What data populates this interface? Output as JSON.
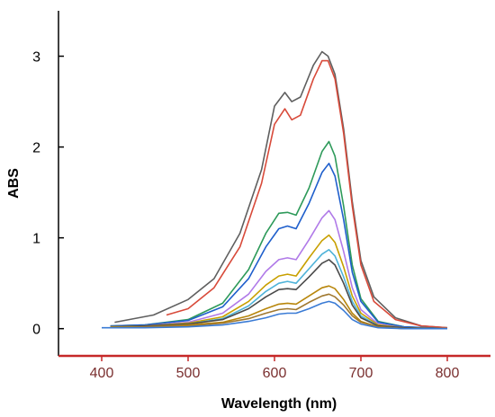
{
  "chart_data": {
    "type": "line",
    "title": "",
    "xlabel": "Wavelength (nm)",
    "ylabel": "ABS",
    "xlim": [
      350,
      850
    ],
    "ylim": [
      -0.3,
      3.5
    ],
    "xticks": [
      400,
      500,
      600,
      700,
      800
    ],
    "yticks": [
      0,
      1,
      2,
      3
    ],
    "grid": false,
    "legend": "none",
    "axis_colors": {
      "left": "#000000",
      "bottom": "#c62828",
      "x_tick_labels": "#7a2f2f"
    },
    "series": [
      {
        "color": "#5f5f5f",
        "x": [
          415,
          460,
          500,
          530,
          560,
          585,
          600,
          612,
          620,
          630,
          645,
          655,
          662,
          670,
          680,
          690,
          700,
          715,
          740,
          770,
          800
        ],
        "y": [
          0.07,
          0.15,
          0.32,
          0.55,
          1.05,
          1.75,
          2.45,
          2.6,
          2.5,
          2.55,
          2.9,
          3.05,
          3.0,
          2.8,
          2.2,
          1.4,
          0.75,
          0.35,
          0.12,
          0.03,
          0.01
        ]
      },
      {
        "color": "#d84a3a",
        "x": [
          475,
          500,
          530,
          560,
          585,
          600,
          612,
          620,
          630,
          645,
          655,
          662,
          670,
          680,
          690,
          700,
          715,
          740,
          770,
          800
        ],
        "y": [
          0.15,
          0.22,
          0.45,
          0.9,
          1.6,
          2.25,
          2.42,
          2.3,
          2.35,
          2.75,
          2.95,
          2.95,
          2.75,
          2.15,
          1.35,
          0.7,
          0.3,
          0.1,
          0.03,
          0.01
        ]
      },
      {
        "color": "#2e9a5a",
        "x": [
          410,
          450,
          500,
          540,
          570,
          590,
          605,
          615,
          625,
          640,
          655,
          663,
          670,
          680,
          690,
          700,
          720,
          750,
          800
        ],
        "y": [
          0.03,
          0.04,
          0.1,
          0.28,
          0.65,
          1.05,
          1.27,
          1.28,
          1.25,
          1.55,
          1.95,
          2.06,
          1.9,
          1.35,
          0.7,
          0.33,
          0.08,
          0.02,
          0.0
        ]
      },
      {
        "color": "#1f5fcc",
        "x": [
          410,
          450,
          500,
          540,
          570,
          590,
          605,
          615,
          625,
          640,
          655,
          663,
          670,
          680,
          690,
          700,
          720,
          750,
          800
        ],
        "y": [
          0.03,
          0.04,
          0.09,
          0.24,
          0.55,
          0.9,
          1.1,
          1.13,
          1.1,
          1.38,
          1.72,
          1.82,
          1.68,
          1.2,
          0.62,
          0.3,
          0.07,
          0.02,
          0.0
        ]
      },
      {
        "color": "#b07ae8",
        "x": [
          410,
          450,
          500,
          540,
          570,
          590,
          605,
          615,
          625,
          640,
          655,
          663,
          670,
          680,
          690,
          700,
          720,
          750,
          800
        ],
        "y": [
          0.02,
          0.03,
          0.07,
          0.17,
          0.38,
          0.63,
          0.76,
          0.78,
          0.76,
          0.98,
          1.22,
          1.3,
          1.2,
          0.85,
          0.45,
          0.21,
          0.05,
          0.01,
          0.0
        ]
      },
      {
        "color": "#c8a000",
        "x": [
          410,
          450,
          500,
          540,
          570,
          590,
          605,
          615,
          625,
          640,
          655,
          663,
          670,
          680,
          690,
          700,
          720,
          750,
          800
        ],
        "y": [
          0.02,
          0.03,
          0.06,
          0.13,
          0.3,
          0.48,
          0.58,
          0.6,
          0.58,
          0.78,
          0.97,
          1.03,
          0.95,
          0.68,
          0.36,
          0.17,
          0.04,
          0.01,
          0.0
        ]
      },
      {
        "color": "#4fb3d9",
        "x": [
          410,
          450,
          500,
          540,
          570,
          590,
          605,
          615,
          625,
          640,
          655,
          663,
          670,
          680,
          690,
          700,
          720,
          750,
          800
        ],
        "y": [
          0.02,
          0.03,
          0.05,
          0.11,
          0.25,
          0.41,
          0.5,
          0.52,
          0.5,
          0.66,
          0.82,
          0.87,
          0.8,
          0.57,
          0.3,
          0.14,
          0.03,
          0.01,
          0.0
        ]
      },
      {
        "color": "#4a4a4a",
        "x": [
          410,
          450,
          500,
          540,
          570,
          590,
          605,
          615,
          625,
          640,
          655,
          663,
          670,
          680,
          690,
          700,
          720,
          750,
          800
        ],
        "y": [
          0.02,
          0.03,
          0.05,
          0.1,
          0.22,
          0.35,
          0.43,
          0.44,
          0.43,
          0.57,
          0.72,
          0.76,
          0.7,
          0.5,
          0.26,
          0.12,
          0.03,
          0.01,
          0.0
        ]
      },
      {
        "color": "#b8860b",
        "x": [
          410,
          450,
          500,
          540,
          570,
          590,
          605,
          615,
          625,
          640,
          655,
          663,
          670,
          680,
          690,
          700,
          720,
          750,
          800
        ],
        "y": [
          0.02,
          0.02,
          0.04,
          0.07,
          0.14,
          0.22,
          0.27,
          0.28,
          0.27,
          0.36,
          0.45,
          0.47,
          0.44,
          0.32,
          0.17,
          0.08,
          0.02,
          0.0,
          0.0
        ]
      },
      {
        "color": "#a0782f",
        "x": [
          410,
          450,
          500,
          540,
          570,
          590,
          605,
          615,
          625,
          640,
          655,
          663,
          670,
          680,
          690,
          700,
          720,
          750,
          800
        ],
        "y": [
          0.01,
          0.02,
          0.03,
          0.06,
          0.11,
          0.17,
          0.21,
          0.22,
          0.21,
          0.29,
          0.36,
          0.38,
          0.35,
          0.26,
          0.14,
          0.07,
          0.02,
          0.0,
          0.0
        ]
      },
      {
        "color": "#3a7bd5",
        "x": [
          400,
          450,
          500,
          540,
          570,
          590,
          605,
          615,
          625,
          640,
          655,
          663,
          670,
          680,
          690,
          700,
          720,
          750,
          800
        ],
        "y": [
          0.01,
          0.01,
          0.02,
          0.04,
          0.08,
          0.12,
          0.16,
          0.17,
          0.17,
          0.22,
          0.28,
          0.3,
          0.28,
          0.2,
          0.1,
          0.05,
          0.01,
          0.0,
          0.0
        ]
      }
    ]
  }
}
